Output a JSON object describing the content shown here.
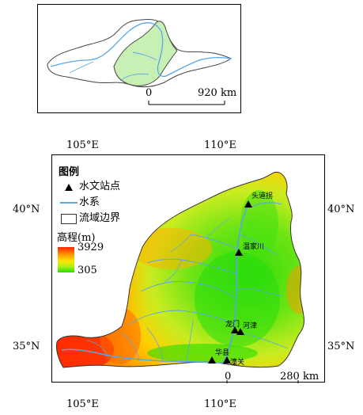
{
  "inset": {
    "scale": {
      "zero": "0",
      "end": "920 km"
    }
  },
  "axes": {
    "top": [
      "105°E",
      "110°E"
    ],
    "bottom": [
      "105°E",
      "110°E"
    ],
    "left": [
      "40°N",
      "35°N"
    ],
    "right": [
      "40°N",
      "35°N"
    ]
  },
  "legend": {
    "title": "图例",
    "items": [
      {
        "label": "水文站点",
        "symbol": "triangle-icon"
      },
      {
        "label": "水系",
        "symbol": "line-icon"
      },
      {
        "label": "流域边界",
        "symbol": "box-icon"
      }
    ]
  },
  "elevation": {
    "title": "高程(m)",
    "max": "3929",
    "min": "305"
  },
  "stations": [
    {
      "name": "头道拐"
    },
    {
      "name": "温家川"
    },
    {
      "name": "龙门"
    },
    {
      "name": "河津"
    },
    {
      "name": "华县"
    },
    {
      "name": "潼关"
    }
  ],
  "scale": {
    "zero": "0",
    "end": "280 km"
  },
  "colors": {
    "river": "#5aa6e8",
    "high": "#ff2200",
    "low": "#22dd00",
    "inset_basin": "#c8f0b4"
  }
}
